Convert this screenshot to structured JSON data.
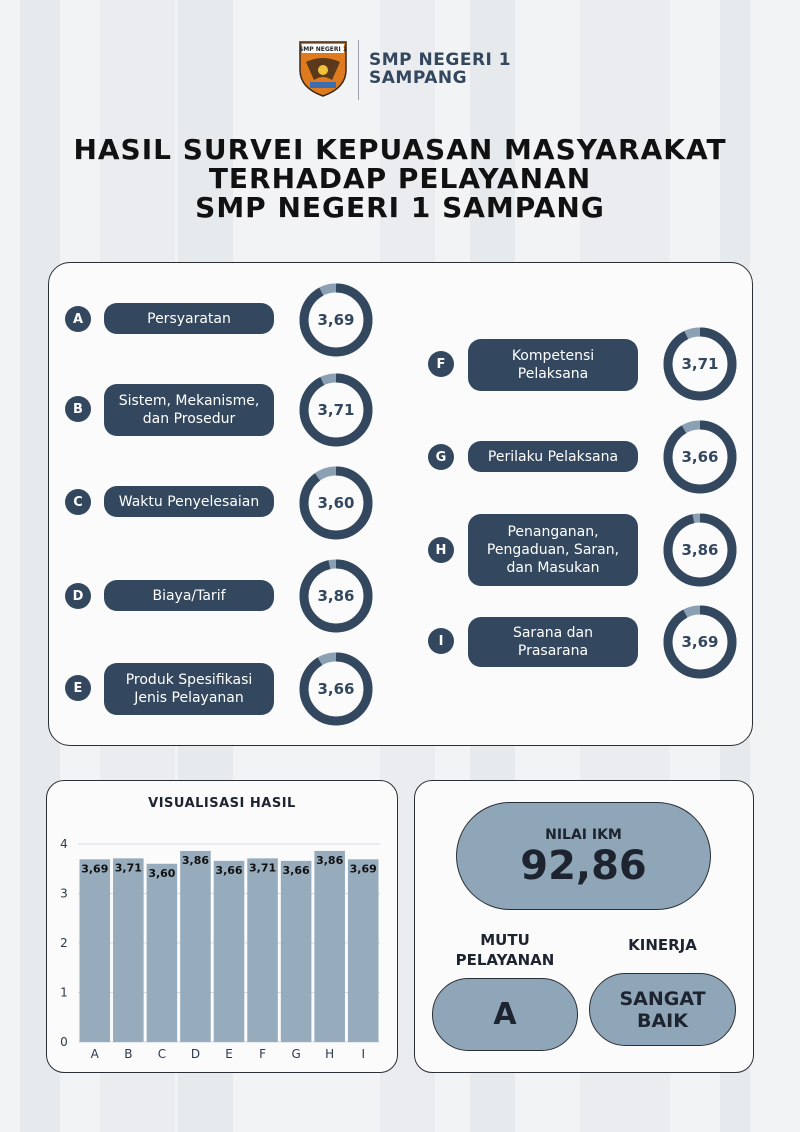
{
  "header": {
    "school_line1": "SMP NEGERI 1",
    "school_line2": "SAMPANG",
    "logo_text": "SMP NEGERI 1"
  },
  "title": {
    "line1": "HASIL SURVEI KEPUASAN MASYARAKAT",
    "line2": "TERHADAP PELAYANAN",
    "line3": "SMP NEGERI 1 SAMPANG"
  },
  "items": [
    {
      "letter": "A",
      "label": "Persyaratan",
      "value": "3,69"
    },
    {
      "letter": "B",
      "label": "Sistem, Mekanisme, dan Prosedur",
      "value": "3,71"
    },
    {
      "letter": "C",
      "label": "Waktu Penyelesaian",
      "value": "3,60"
    },
    {
      "letter": "D",
      "label": "Biaya/Tarif",
      "value": "3,86"
    },
    {
      "letter": "E",
      "label": "Produk Spesifikasi Jenis Pelayanan",
      "value": "3,66"
    },
    {
      "letter": "F",
      "label": "Kompetensi Pelaksana",
      "value": "3,71"
    },
    {
      "letter": "G",
      "label": "Perilaku Pelaksana",
      "value": "3,66"
    },
    {
      "letter": "H",
      "label": "Penanganan, Pengaduan, Saran, dan Masukan",
      "value": "3,86"
    },
    {
      "letter": "I",
      "label": "Sarana dan Prasarana",
      "value": "3,69"
    }
  ],
  "chart_data": {
    "type": "bar",
    "title": "VISUALISASI HASIL",
    "categories": [
      "A",
      "B",
      "C",
      "D",
      "E",
      "F",
      "G",
      "H",
      "I"
    ],
    "values": [
      3.69,
      3.71,
      3.6,
      3.86,
      3.66,
      3.71,
      3.66,
      3.86,
      3.69
    ],
    "value_labels": [
      "3,69",
      "3,71",
      "3,60",
      "3,86",
      "3,66",
      "3,71",
      "3,66",
      "3,86",
      "3,69"
    ],
    "yticks": [
      "0",
      "1",
      "2",
      "3",
      "4"
    ],
    "ylim": [
      0,
      4
    ],
    "grid": true
  },
  "result": {
    "ikm_label": "NILAI IKM",
    "ikm_value": "92,86",
    "mutu_label": "MUTU PELAYANAN",
    "mutu_value": "A",
    "kinerja_label": "KINERJA",
    "kinerja_value": "SANGAT BAIK"
  },
  "colors": {
    "dark": "#33475e",
    "light": "#8fa6b8",
    "bar": "#96abbb",
    "track": "#8ba1b3"
  }
}
